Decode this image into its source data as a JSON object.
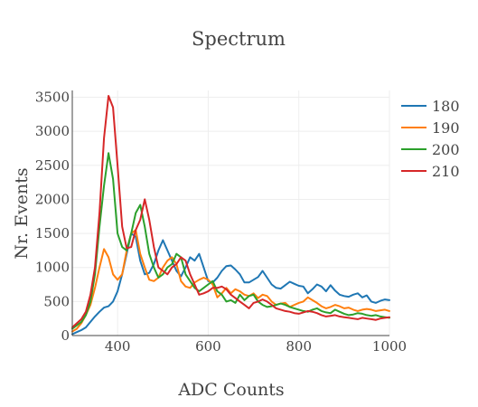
{
  "chart_data": {
    "type": "line",
    "title": "Spectrum",
    "xlabel": "ADC Counts",
    "ylabel": "Nr. Events",
    "xlim": [
      300,
      1000
    ],
    "ylim": [
      0,
      3600
    ],
    "xticks": [
      400,
      600,
      800,
      1000
    ],
    "yticks": [
      0,
      500,
      1000,
      1500,
      2000,
      2500,
      3000,
      3500
    ],
    "grid": true,
    "legend_position": "top-right",
    "series": [
      {
        "name": "180",
        "color": "#1f77b4",
        "x": [
          300,
          310,
          320,
          330,
          340,
          350,
          360,
          370,
          380,
          390,
          400,
          410,
          420,
          430,
          440,
          450,
          460,
          470,
          480,
          490,
          500,
          510,
          520,
          530,
          540,
          550,
          560,
          570,
          580,
          590,
          600,
          610,
          620,
          630,
          640,
          650,
          660,
          670,
          680,
          690,
          700,
          710,
          720,
          730,
          740,
          750,
          760,
          770,
          780,
          790,
          800,
          810,
          820,
          830,
          840,
          850,
          860,
          870,
          880,
          890,
          900,
          910,
          920,
          930,
          940,
          950,
          960,
          970,
          980,
          990,
          1000
        ],
        "y": [
          20,
          50,
          80,
          120,
          200,
          280,
          350,
          410,
          430,
          500,
          650,
          900,
          1200,
          1500,
          1450,
          1100,
          900,
          920,
          1050,
          1250,
          1400,
          1250,
          1100,
          950,
          870,
          1000,
          1150,
          1100,
          1200,
          1000,
          800,
          780,
          850,
          950,
          1020,
          1030,
          970,
          900,
          780,
          780,
          820,
          860,
          950,
          850,
          750,
          700,
          690,
          740,
          790,
          760,
          730,
          720,
          620,
          680,
          750,
          720,
          650,
          740,
          660,
          600,
          580,
          570,
          600,
          620,
          560,
          590,
          500,
          480,
          510,
          530,
          520
        ]
      },
      {
        "name": "190",
        "color": "#ff7f0e",
        "x": [
          300,
          310,
          320,
          330,
          340,
          350,
          360,
          370,
          380,
          390,
          400,
          410,
          420,
          430,
          440,
          450,
          460,
          470,
          480,
          490,
          500,
          510,
          520,
          530,
          540,
          550,
          560,
          570,
          580,
          590,
          600,
          610,
          620,
          630,
          640,
          650,
          660,
          670,
          680,
          690,
          700,
          710,
          720,
          730,
          740,
          750,
          760,
          770,
          780,
          790,
          800,
          810,
          820,
          830,
          840,
          850,
          860,
          870,
          880,
          890,
          900,
          910,
          920,
          930,
          940,
          950,
          960,
          970,
          980,
          990,
          1000
        ],
        "y": [
          60,
          100,
          180,
          300,
          450,
          700,
          1000,
          1270,
          1150,
          900,
          820,
          900,
          1250,
          1500,
          1550,
          1200,
          1000,
          820,
          800,
          850,
          1000,
          1100,
          1150,
          1050,
          800,
          720,
          700,
          780,
          820,
          850,
          820,
          750,
          560,
          620,
          700,
          620,
          680,
          650,
          600,
          580,
          620,
          550,
          600,
          580,
          500,
          450,
          470,
          480,
          420,
          450,
          480,
          500,
          560,
          520,
          480,
          430,
          400,
          420,
          450,
          430,
          400,
          410,
          380,
          360,
          380,
          390,
          380,
          360,
          370,
          380,
          360
        ]
      },
      {
        "name": "200",
        "color": "#2ca02c",
        "x": [
          300,
          310,
          320,
          330,
          340,
          350,
          360,
          370,
          380,
          390,
          400,
          410,
          420,
          430,
          440,
          450,
          460,
          470,
          480,
          490,
          500,
          510,
          520,
          530,
          540,
          550,
          560,
          570,
          580,
          590,
          600,
          610,
          620,
          630,
          640,
          650,
          660,
          670,
          680,
          690,
          700,
          710,
          720,
          730,
          740,
          750,
          760,
          770,
          780,
          790,
          800,
          810,
          820,
          830,
          840,
          850,
          860,
          870,
          880,
          890,
          900,
          910,
          920,
          930,
          940,
          950,
          960,
          970,
          980,
          990,
          1000
        ],
        "y": [
          100,
          150,
          200,
          300,
          500,
          900,
          1600,
          2200,
          2680,
          2300,
          1500,
          1300,
          1250,
          1500,
          1800,
          1920,
          1600,
          1200,
          1000,
          850,
          900,
          1000,
          1050,
          1200,
          1150,
          900,
          800,
          700,
          650,
          700,
          750,
          800,
          650,
          600,
          500,
          520,
          480,
          600,
          520,
          580,
          600,
          500,
          450,
          420,
          430,
          450,
          470,
          450,
          420,
          400,
          380,
          360,
          350,
          380,
          400,
          360,
          340,
          330,
          380,
          350,
          320,
          300,
          310,
          330,
          320,
          300,
          290,
          300,
          280,
          270,
          260
        ]
      },
      {
        "name": "210",
        "color": "#d62728",
        "x": [
          300,
          310,
          320,
          330,
          340,
          350,
          360,
          370,
          380,
          390,
          400,
          410,
          420,
          430,
          440,
          450,
          460,
          470,
          480,
          490,
          500,
          510,
          520,
          530,
          540,
          550,
          560,
          570,
          580,
          590,
          600,
          610,
          620,
          630,
          640,
          650,
          660,
          670,
          680,
          690,
          700,
          710,
          720,
          730,
          740,
          750,
          760,
          770,
          780,
          790,
          800,
          810,
          820,
          830,
          840,
          850,
          860,
          870,
          880,
          890,
          900,
          910,
          920,
          930,
          940,
          950,
          960,
          970,
          980,
          990,
          1000
        ],
        "y": [
          120,
          180,
          240,
          350,
          600,
          1000,
          1800,
          2900,
          3520,
          3350,
          2500,
          1600,
          1280,
          1300,
          1550,
          1700,
          2000,
          1700,
          1300,
          1000,
          950,
          900,
          1000,
          1050,
          1150,
          1100,
          900,
          750,
          600,
          620,
          650,
          700,
          700,
          720,
          680,
          600,
          550,
          500,
          450,
          400,
          480,
          500,
          530,
          500,
          450,
          400,
          380,
          360,
          350,
          330,
          320,
          340,
          360,
          350,
          330,
          300,
          280,
          290,
          300,
          280,
          270,
          260,
          250,
          240,
          260,
          250,
          240,
          230,
          250,
          260,
          270
        ]
      }
    ]
  }
}
